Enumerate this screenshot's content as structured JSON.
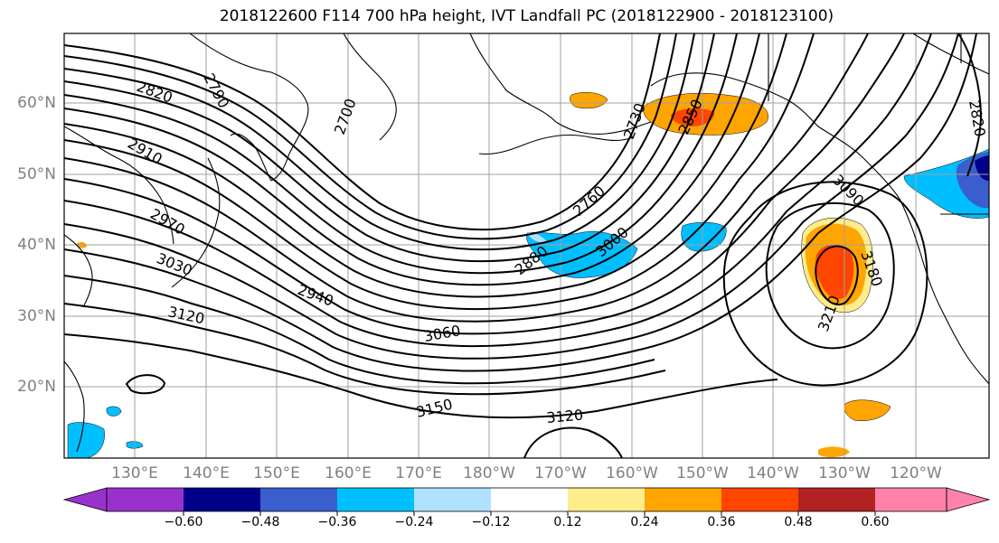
{
  "title": "2018122600 F114 700 hPa height, IVT Landfall PC (2018122900 - 2018123100)",
  "lat_labels": [
    "20°N",
    "30°N",
    "40°N",
    "50°N",
    "60°N"
  ],
  "lon_labels": [
    "130°E",
    "140°E",
    "150°E",
    "160°E",
    "170°E",
    "180°W",
    "170°W",
    "160°W",
    "150°W",
    "140°W",
    "130°W",
    "120°W"
  ],
  "contour_labels": [
    "2820",
    "2790",
    "2910",
    "2700",
    "2730",
    "2850",
    "2970",
    "3030",
    "3120",
    "2940",
    "2760",
    "3000",
    "2880",
    "3060",
    "3090",
    "3180",
    "3210",
    "3150",
    "3120",
    "2820"
  ],
  "colorbar": {
    "ticks": [
      "−0.60",
      "−0.48",
      "−0.36",
      "−0.24",
      "−0.12",
      "0.12",
      "0.24",
      "0.36",
      "0.48",
      "0.60"
    ],
    "colors": [
      "#9932cc",
      "#00008b",
      "#3a5fcd",
      "#00bfff",
      "#b0e2ff",
      "#ffffff",
      "#ffec8b",
      "#ffa500",
      "#ff4500",
      "#b22222",
      "#ff82ab"
    ]
  }
}
